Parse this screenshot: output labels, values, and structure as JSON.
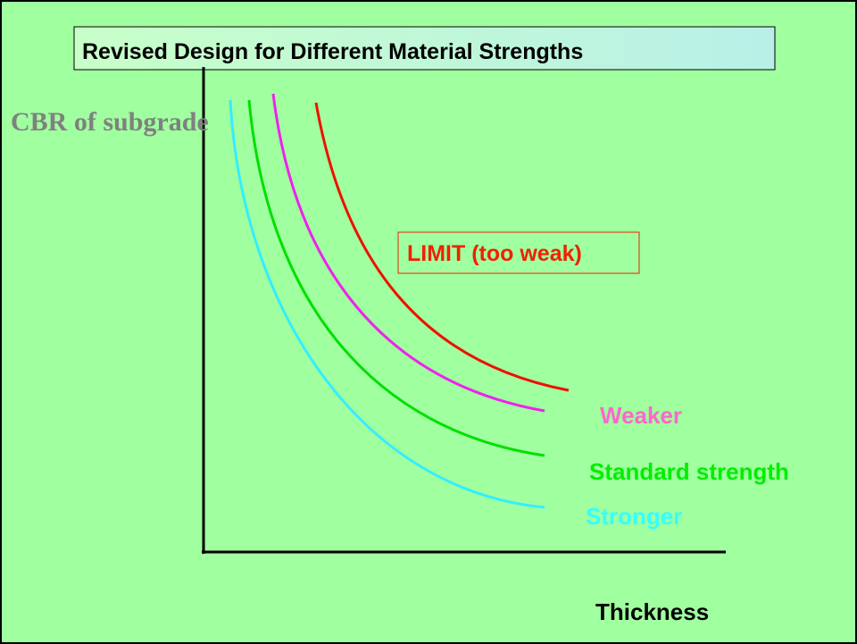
{
  "title": "Revised Design for Different Material Strengths",
  "y_axis_label": "CBR of subgrade",
  "x_axis_label": "Thickness",
  "curves": [
    {
      "label": "LIMIT (too weak)"
    },
    {
      "label": "Weaker"
    },
    {
      "label": "Standard strength"
    },
    {
      "label": "Stronger"
    }
  ]
}
